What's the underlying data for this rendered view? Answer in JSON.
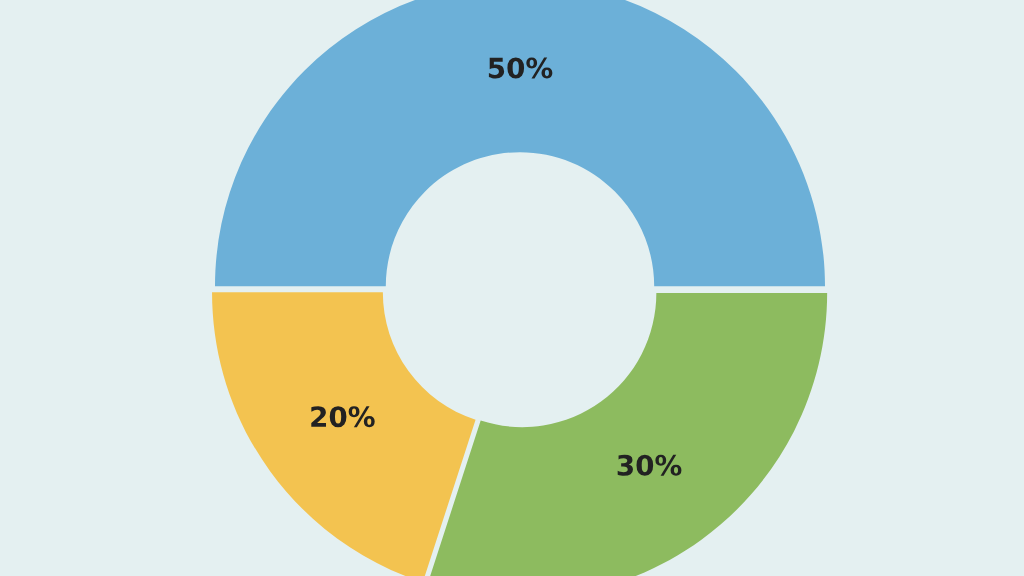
{
  "chart_data": {
    "type": "donut",
    "categories": [
      null,
      null,
      null
    ],
    "values": [
      50,
      30,
      20
    ],
    "colors": [
      "#6cb0d8",
      "#8dbb5f",
      "#f3c350"
    ],
    "value_labels": [
      "50%",
      "30%",
      "20%"
    ]
  }
}
